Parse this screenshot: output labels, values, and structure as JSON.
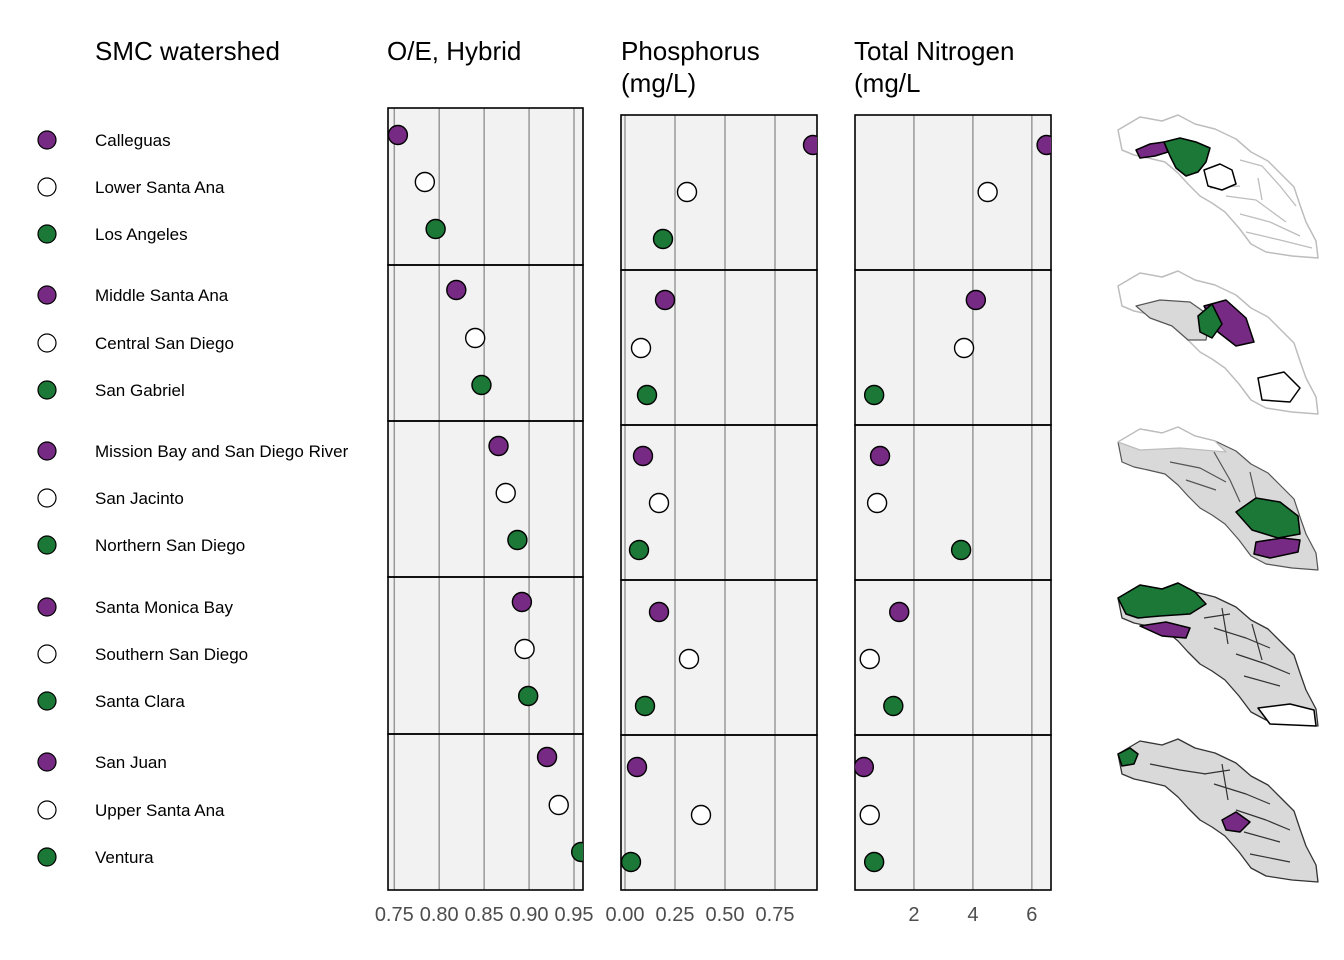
{
  "headers": {
    "watershed": "SMC watershed",
    "oe": "O/E, Hybrid",
    "phos_line1": "Phosphorus",
    "phos_line2": "(mg/L)",
    "tn_line1": "Total Nitrogen",
    "tn_line2": "(mg/L"
  },
  "colors": {
    "purple": "#762a83",
    "white": "#ffffff",
    "green": "#1b7837",
    "panel_bg": "#f2f2f2",
    "grid": "#999999",
    "map_grey": "#d9d9d9"
  },
  "chart_data": [
    {
      "type": "scatter",
      "title": "O/E, Hybrid",
      "xlim": [
        0.743,
        0.96
      ],
      "xticks": [
        0.75,
        0.8,
        0.85,
        0.9,
        0.95
      ],
      "tick_labels": [
        "0.75",
        "0.80",
        "0.85",
        "0.90",
        "0.95"
      ],
      "groups": [
        {
          "categories": [
            "Calleguas",
            "Lower Santa Ana",
            "Los Angeles"
          ],
          "values": [
            0.754,
            0.784,
            0.796
          ]
        },
        {
          "categories": [
            "Middle Santa Ana",
            "Central San Diego",
            "San Gabriel"
          ],
          "values": [
            0.819,
            0.84,
            0.847
          ]
        },
        {
          "categories": [
            "Mission Bay and San Diego River",
            "San Jacinto",
            "Northern San Diego"
          ],
          "values": [
            0.866,
            0.874,
            0.887
          ]
        },
        {
          "categories": [
            "Santa Monica Bay",
            "Southern San Diego",
            "Santa Clara"
          ],
          "values": [
            0.892,
            0.895,
            0.899
          ]
        },
        {
          "categories": [
            "San Juan",
            "Upper Santa Ana",
            "Ventura"
          ],
          "values": [
            0.92,
            0.933,
            0.958
          ]
        }
      ]
    },
    {
      "type": "scatter",
      "title": "Phosphorus (mg/L)",
      "xlim": [
        -0.02,
        0.96
      ],
      "xticks": [
        0.0,
        0.25,
        0.5,
        0.75
      ],
      "tick_labels": [
        "0.00",
        "0.25",
        "0.50",
        "0.75"
      ],
      "groups": [
        {
          "categories": [
            "Calleguas",
            "Lower Santa Ana",
            "Los Angeles"
          ],
          "values": [
            0.94,
            0.31,
            0.19
          ]
        },
        {
          "categories": [
            "Middle Santa Ana",
            "Central San Diego",
            "San Gabriel"
          ],
          "values": [
            0.2,
            0.08,
            0.11
          ]
        },
        {
          "categories": [
            "Mission Bay and San Diego River",
            "San Jacinto",
            "Northern San Diego"
          ],
          "values": [
            0.09,
            0.17,
            0.07
          ]
        },
        {
          "categories": [
            "Santa Monica Bay",
            "Southern San Diego",
            "Santa Clara"
          ],
          "values": [
            0.17,
            0.32,
            0.1
          ]
        },
        {
          "categories": [
            "San Juan",
            "Upper Santa Ana",
            "Ventura"
          ],
          "values": [
            0.06,
            0.38,
            0.03
          ]
        }
      ]
    },
    {
      "type": "scatter",
      "title": "Total Nitrogen (mg/L",
      "xlim": [
        0.0,
        6.65
      ],
      "xticks": [
        2,
        4,
        6
      ],
      "tick_labels": [
        "2",
        "4",
        "6"
      ],
      "groups": [
        {
          "categories": [
            "Calleguas",
            "Lower Santa Ana",
            "Los Angeles"
          ],
          "values": [
            6.5,
            4.5,
            null
          ]
        },
        {
          "categories": [
            "Middle Santa Ana",
            "Central San Diego",
            "San Gabriel"
          ],
          "values": [
            4.1,
            3.7,
            0.65
          ]
        },
        {
          "categories": [
            "Mission Bay and San Diego River",
            "San Jacinto",
            "Northern San Diego"
          ],
          "values": [
            0.85,
            0.75,
            3.6
          ]
        },
        {
          "categories": [
            "Santa Monica Bay",
            "Southern San Diego",
            "Santa Clara"
          ],
          "values": [
            1.5,
            0.5,
            1.3
          ]
        },
        {
          "categories": [
            "San Juan",
            "Upper Santa Ana",
            "Ventura"
          ],
          "values": [
            0.3,
            0.5,
            0.65
          ]
        }
      ]
    }
  ],
  "watersheds": [
    {
      "name": "Calleguas",
      "color": "purple"
    },
    {
      "name": "Lower Santa Ana",
      "color": "white"
    },
    {
      "name": "Los Angeles",
      "color": "green"
    },
    {
      "name": "Middle Santa Ana",
      "color": "purple"
    },
    {
      "name": "Central San Diego",
      "color": "white"
    },
    {
      "name": "San Gabriel",
      "color": "green"
    },
    {
      "name": "Mission Bay and San Diego River",
      "color": "purple"
    },
    {
      "name": "San Jacinto",
      "color": "white"
    },
    {
      "name": "Northern San Diego",
      "color": "green"
    },
    {
      "name": "Santa Monica Bay",
      "color": "purple"
    },
    {
      "name": "Southern San Diego",
      "color": "white"
    },
    {
      "name": "Santa Clara",
      "color": "green"
    },
    {
      "name": "San Juan",
      "color": "purple"
    },
    {
      "name": "Upper Santa Ana",
      "color": "white"
    },
    {
      "name": "Ventura",
      "color": "green"
    }
  ]
}
